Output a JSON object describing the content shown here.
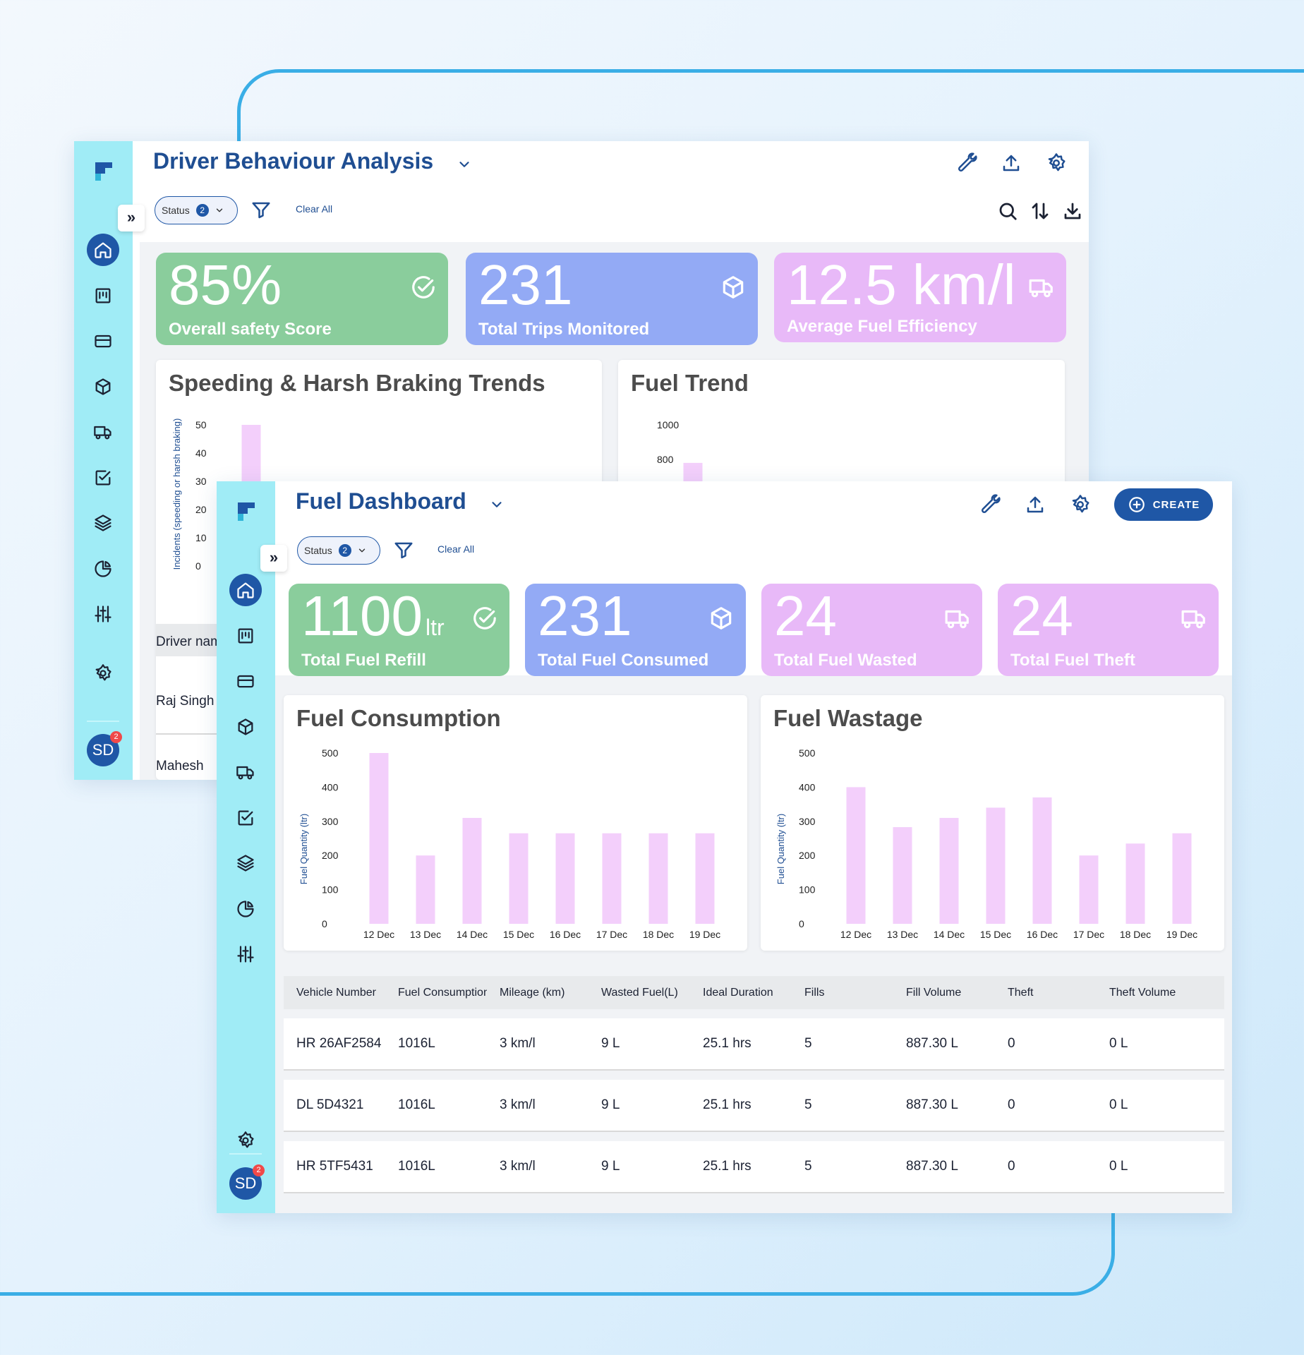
{
  "colors": {
    "accent": "#1f57a6",
    "sidebar": "#a0ecf6",
    "green": "#8acd9c",
    "blue": "#93aaf5",
    "pink": "#e8b9f8",
    "bar": "#f3cffb"
  },
  "nav_icons": [
    "home-icon",
    "kanban-icon",
    "card-icon",
    "cube-icon",
    "truck-icon",
    "checkbox-icon",
    "layers-icon",
    "pie-chart-icon",
    "sliders-icon"
  ],
  "user": {
    "initials": "SD",
    "notifications": "2"
  },
  "back_window": {
    "title": "Driver Behaviour Analysis",
    "status_label": "Status",
    "status_count": "2",
    "clear_all": "Clear All",
    "kpis": [
      {
        "value": "85%",
        "label": "Overall safety Score",
        "icon": "check-circle-icon"
      },
      {
        "value": "231",
        "label": "Total Trips Monitored",
        "icon": "cube-icon"
      },
      {
        "value": "12.5 km/l",
        "label": "Average Fuel Efficiency",
        "icon": "truck-icon"
      }
    ],
    "driver_list": {
      "header": "Driver name",
      "rows": [
        "Raj Singh",
        "Mahesh"
      ]
    }
  },
  "front_window": {
    "title": "Fuel Dashboard",
    "status_label": "Status",
    "status_count": "2",
    "clear_all": "Clear All",
    "create_label": "CREATE",
    "kpis": [
      {
        "value": "1100",
        "unit": "ltr",
        "label": "Total Fuel Refill",
        "icon": "check-circle-icon"
      },
      {
        "value": "231",
        "unit": "",
        "label": "Total Fuel Consumed",
        "icon": "cube-icon"
      },
      {
        "value": "24",
        "unit": "",
        "label": "Total Fuel Wasted",
        "icon": "truck-icon"
      },
      {
        "value": "24",
        "unit": "",
        "label": "Total Fuel Theft",
        "icon": "truck-icon"
      }
    ],
    "table": {
      "columns": [
        "Vehicle Number",
        "Fuel Consumption",
        "Mileage (km)",
        "Wasted Fuel(L)",
        "Ideal Duration",
        "Fills",
        "Fill Volume",
        "Theft",
        "Theft Volume"
      ],
      "rows": [
        [
          "HR 26AF2584",
          "1016L",
          "3 km/l",
          "9 L",
          "25.1 hrs",
          "5",
          "887.30 L",
          "0",
          "0 L"
        ],
        [
          "DL 5D4321",
          "1016L",
          "3 km/l",
          "9 L",
          "25.1 hrs",
          "5",
          "887.30 L",
          "0",
          "0 L"
        ],
        [
          "HR 5TF5431",
          "1016L",
          "3 km/l",
          "9 L",
          "25.1 hrs",
          "5",
          "887.30 L",
          "0",
          "0 L"
        ]
      ]
    }
  },
  "chart_data": [
    {
      "type": "bar",
      "title": "Speeding & Harsh Braking Trends",
      "ylabel": "Incidents (speeding or harsh braking)",
      "yticks": [
        0,
        10,
        20,
        30,
        40,
        50
      ],
      "ylim": [
        0,
        50
      ],
      "visible_values": [
        50
      ]
    },
    {
      "type": "bar",
      "title": "Fuel Trend",
      "yticks": [
        800,
        1000
      ],
      "ylim": [
        0,
        1000
      ],
      "visible_values": [
        780
      ]
    },
    {
      "type": "bar",
      "title": "Fuel Consumption",
      "ylabel": "Fuel Quantity (ltr)",
      "xlabel": "",
      "categories": [
        "12 Dec",
        "13 Dec",
        "14 Dec",
        "15 Dec",
        "16 Dec",
        "17 Dec",
        "18 Dec",
        "19 Dec"
      ],
      "values": [
        500,
        200,
        310,
        265,
        265,
        265,
        265,
        265
      ],
      "yticks": [
        0,
        100,
        200,
        300,
        400,
        500
      ],
      "ylim": [
        0,
        500
      ]
    },
    {
      "type": "bar",
      "title": "Fuel Wastage",
      "ylabel": "Fuel Quantity (ltr)",
      "xlabel": "",
      "categories": [
        "12 Dec",
        "13 Dec",
        "14 Dec",
        "15 Dec",
        "16 Dec",
        "17 Dec",
        "18 Dec",
        "19 Dec"
      ],
      "values": [
        400,
        283,
        310,
        340,
        370,
        200,
        235,
        265
      ],
      "yticks": [
        0,
        100,
        200,
        300,
        400,
        500
      ],
      "ylim": [
        0,
        500
      ]
    }
  ]
}
